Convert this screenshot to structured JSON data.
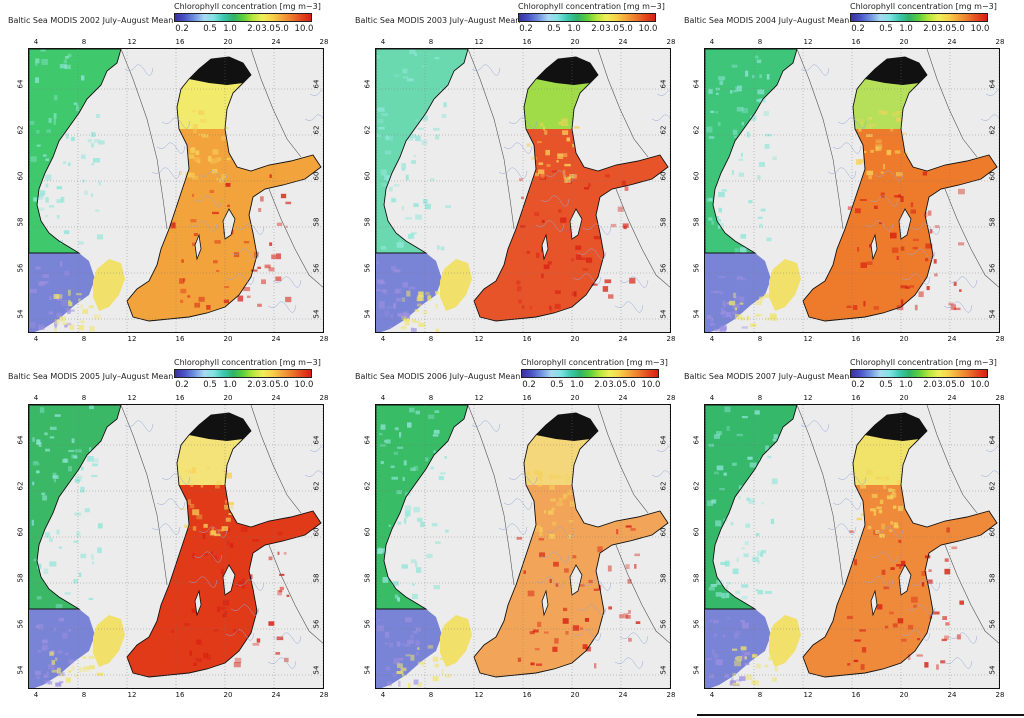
{
  "colorbar": {
    "label": "Chlorophyll concentration  [mg m−3]",
    "ticks": [
      "0.2",
      "0.5",
      "1.0",
      "2.0",
      "3.0",
      "5.0",
      "10.0"
    ],
    "colors": [
      "#3b2f9e",
      "#4a55c8",
      "#6f93e0",
      "#a8d8f0",
      "#7fe3e3",
      "#3cc8b0",
      "#2fb36a",
      "#5ccf3b",
      "#b6e63b",
      "#efef5a",
      "#f7d34a",
      "#f4a63b",
      "#ee7a2c",
      "#e4471f",
      "#d81f12"
    ]
  },
  "lon_ticks": [
    "4",
    "8",
    "12",
    "16",
    "20",
    "24",
    "28"
  ],
  "lat_ticks": [
    "54",
    "56",
    "58",
    "60",
    "62",
    "64"
  ],
  "panels": [
    {
      "title": "Baltic Sea MODIS 2002 July–August Mean",
      "year": "2002",
      "sea": "#f3a33c",
      "north": "#f1ea6a",
      "shelf": "#40c86c"
    },
    {
      "title": "Baltic Sea MODIS 2003 July–August Mean",
      "year": "2003",
      "sea": "#e8542a",
      "north": "#9fdc48",
      "shelf": "#6bd9b0"
    },
    {
      "title": "Baltic Sea MODIS 2004 July–August Mean",
      "year": "2004",
      "sea": "#ee7a2c",
      "north": "#b6e05a",
      "shelf": "#3fc57a"
    },
    {
      "title": "Baltic Sea MODIS 2005 July–August Mean",
      "year": "2005",
      "sea": "#e03a18",
      "north": "#f3e378",
      "shelf": "#3ab866"
    },
    {
      "title": "Baltic Sea MODIS 2006 July–August Mean",
      "year": "2006",
      "sea": "#f2a458",
      "north": "#f4d77a",
      "shelf": "#38bc66"
    },
    {
      "title": "Baltic Sea MODIS 2007 July–August Mean",
      "year": "2007",
      "sea": "#ef8a3a",
      "north": "#f1e26a",
      "shelf": "#35b86a"
    }
  ]
}
